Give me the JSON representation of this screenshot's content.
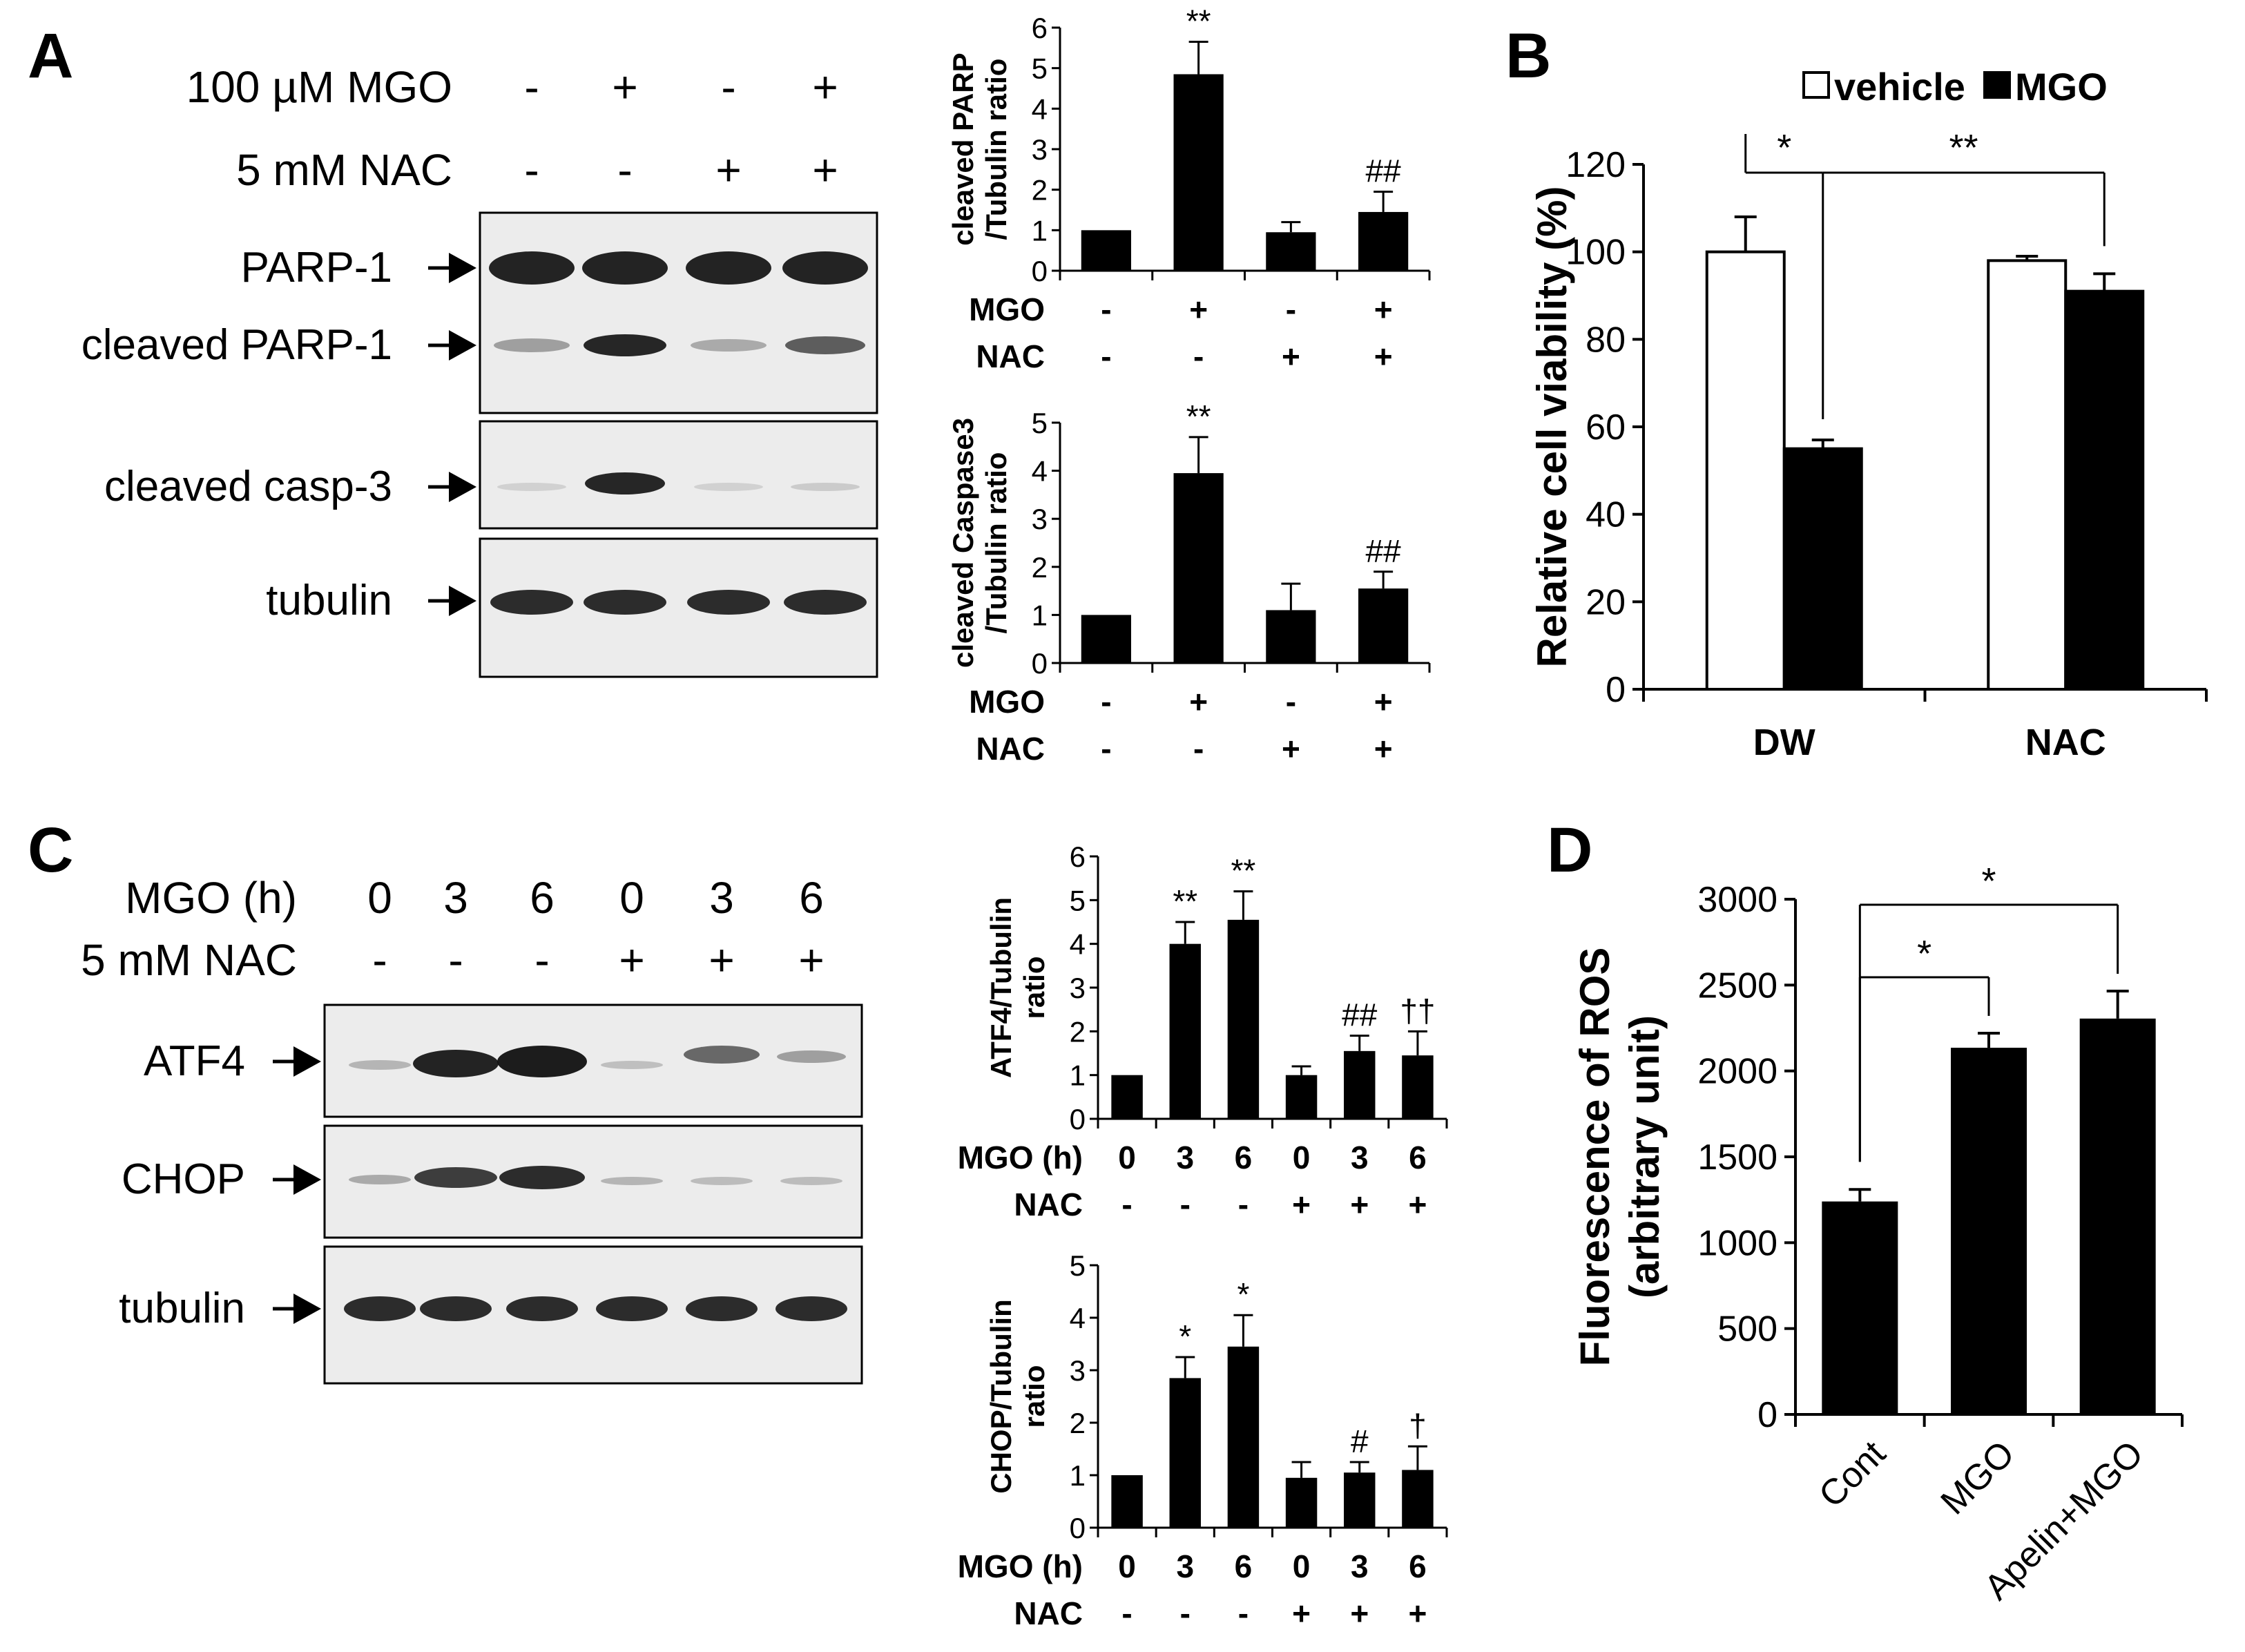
{
  "panels": {
    "A": {
      "letter": "A",
      "conditions": [
        {
          "label": "100 µM MGO",
          "signs": [
            "-",
            "+",
            "-",
            "+"
          ]
        },
        {
          "label": "5 mM NAC",
          "signs": [
            "-",
            "-",
            "+",
            "+"
          ]
        }
      ],
      "blot_labels": [
        "PARP-1",
        "cleaved PARP-1",
        "cleaved casp-3",
        "tubulin"
      ]
    },
    "B": {
      "letter": "B"
    },
    "C": {
      "letter": "C",
      "conditions": [
        {
          "label": "MGO (h)",
          "signs": [
            "0",
            "3",
            "6",
            "0",
            "3",
            "6"
          ]
        },
        {
          "label": "5 mM NAC",
          "signs": [
            "-",
            "-",
            "-",
            "+",
            "+",
            "+"
          ]
        }
      ],
      "blot_labels": [
        "ATF4",
        "CHOP",
        "tubulin"
      ]
    },
    "D": {
      "letter": "D"
    }
  },
  "chart_data": [
    {
      "id": "A1",
      "type": "bar",
      "ylabel_lines": [
        "cleaved PARP",
        "/Tubulin ratio"
      ],
      "ylim": [
        0,
        6
      ],
      "yticks": [
        0,
        1,
        2,
        3,
        4,
        5,
        6
      ],
      "values": [
        1.0,
        4.85,
        0.95,
        1.45
      ],
      "errors": [
        0.0,
        0.8,
        0.25,
        0.5
      ],
      "annotations": [
        "",
        "**",
        "",
        "##"
      ],
      "conditions": [
        {
          "label": "MGO",
          "signs": [
            "-",
            "+",
            "-",
            "+"
          ]
        },
        {
          "label": "NAC",
          "signs": [
            "-",
            "-",
            "+",
            "+"
          ]
        }
      ]
    },
    {
      "id": "A2",
      "type": "bar",
      "ylabel_lines": [
        "cleaved Caspase3",
        "/Tubulin ratio"
      ],
      "ylim": [
        0,
        5
      ],
      "yticks": [
        0,
        1,
        2,
        3,
        4,
        5
      ],
      "values": [
        1.0,
        3.95,
        1.1,
        1.55
      ],
      "errors": [
        0.0,
        0.75,
        0.55,
        0.35
      ],
      "annotations": [
        "",
        "**",
        "",
        "##"
      ],
      "conditions": [
        {
          "label": "MGO",
          "signs": [
            "-",
            "+",
            "-",
            "+"
          ]
        },
        {
          "label": "NAC",
          "signs": [
            "-",
            "-",
            "+",
            "+"
          ]
        }
      ]
    },
    {
      "id": "B",
      "type": "bar",
      "ylabel": "Relative cell viability (%)",
      "ylim": [
        0,
        120
      ],
      "yticks": [
        0,
        20,
        40,
        60,
        80,
        100,
        120
      ],
      "categories": [
        "DW",
        "NAC"
      ],
      "series": [
        {
          "name": "vehicle",
          "color": "#ffffff",
          "values": [
            100,
            98
          ],
          "errors": [
            8,
            1
          ]
        },
        {
          "name": "MGO",
          "color": "#000000",
          "values": [
            55,
            91
          ],
          "errors": [
            2,
            4
          ]
        }
      ],
      "significance": [
        "*",
        "**"
      ]
    },
    {
      "id": "C1",
      "type": "bar",
      "ylabel_lines": [
        "ATF4/Tubulin",
        "ratio"
      ],
      "ylim": [
        0,
        6
      ],
      "yticks": [
        0,
        1,
        2,
        3,
        4,
        5,
        6
      ],
      "values": [
        1.0,
        4.0,
        4.55,
        1.0,
        1.55,
        1.45
      ],
      "errors": [
        0.0,
        0.5,
        0.65,
        0.2,
        0.35,
        0.55
      ],
      "annotations": [
        "",
        "**",
        "**",
        "",
        "##",
        "††"
      ],
      "conditions": [
        {
          "label": "MGO (h)",
          "signs": [
            "0",
            "3",
            "6",
            "0",
            "3",
            "6"
          ]
        },
        {
          "label": "NAC",
          "signs": [
            "-",
            "-",
            "-",
            "+",
            "+",
            "+"
          ]
        }
      ]
    },
    {
      "id": "C2",
      "type": "bar",
      "ylabel_lines": [
        "CHOP/Tubulin",
        "ratio"
      ],
      "ylim": [
        0,
        5
      ],
      "yticks": [
        0,
        1,
        2,
        3,
        4,
        5
      ],
      "values": [
        1.0,
        2.85,
        3.45,
        0.95,
        1.05,
        1.1
      ],
      "errors": [
        0.0,
        0.4,
        0.6,
        0.3,
        0.2,
        0.45
      ],
      "annotations": [
        "",
        "*",
        "*",
        "",
        "#",
        "†"
      ],
      "conditions": [
        {
          "label": "MGO (h)",
          "signs": [
            "0",
            "3",
            "6",
            "0",
            "3",
            "6"
          ]
        },
        {
          "label": "NAC",
          "signs": [
            "-",
            "-",
            "-",
            "+",
            "+",
            "+"
          ]
        }
      ]
    },
    {
      "id": "D",
      "type": "bar",
      "ylabel_lines": [
        "Fluorescence of ROS",
        "(arbitrary unit)"
      ],
      "ylim": [
        0,
        3000
      ],
      "yticks": [
        0,
        500,
        1000,
        1500,
        2000,
        2500,
        3000
      ],
      "categories": [
        "Cont",
        "MGO",
        "Apelin+MGO"
      ],
      "values": [
        1240,
        2135,
        2305
      ],
      "errors": [
        70,
        85,
        160
      ],
      "significance": [
        "*",
        "*"
      ]
    }
  ]
}
